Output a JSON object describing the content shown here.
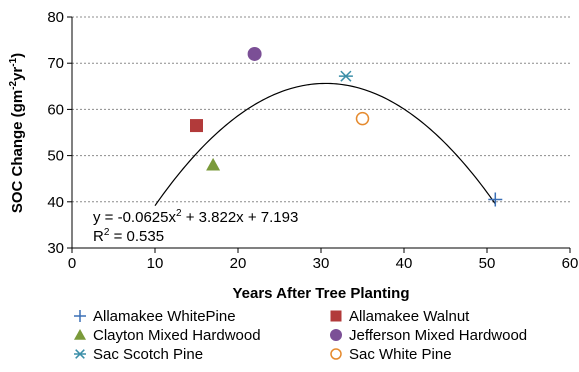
{
  "chart_data": {
    "type": "scatter",
    "xlabel": "Years After Tree Planting",
    "ylabel": "SOC Change (gm",
    "ylabel_sup1": "-2",
    "ylabel_mid": "yr",
    "ylabel_sup2": "-1",
    "ylabel_end": ")",
    "xlim": [
      0,
      60
    ],
    "ylim": [
      30,
      80
    ],
    "xticks": [
      0,
      10,
      20,
      30,
      40,
      50,
      60
    ],
    "yticks": [
      30,
      40,
      50,
      60,
      70,
      80
    ],
    "grid": "horizontal dotted",
    "legend_position": "bottom",
    "series": [
      {
        "name": "Allamakee WhitePine",
        "marker": "plus",
        "color": "#3a6fb6",
        "x": [
          51
        ],
        "y": [
          40.5
        ]
      },
      {
        "name": "Allamakee Walnut",
        "marker": "square",
        "color": "#b23a3a",
        "x": [
          15
        ],
        "y": [
          56.5
        ]
      },
      {
        "name": "Clayton Mixed Hardwood",
        "marker": "triangle",
        "color": "#7a9a3a",
        "x": [
          17
        ],
        "y": [
          48
        ]
      },
      {
        "name": "Jefferson Mixed Hardwood",
        "marker": "circle",
        "color": "#7b4f96",
        "x": [
          22
        ],
        "y": [
          72
        ]
      },
      {
        "name": "Sac Scotch Pine",
        "marker": "asterisk",
        "color": "#3b8fa8",
        "x": [
          33
        ],
        "y": [
          67.2
        ]
      },
      {
        "name": "Sac White Pine",
        "marker": "circle-open",
        "color": "#e58a2e",
        "x": [
          35
        ],
        "y": [
          58
        ]
      }
    ],
    "trendline": {
      "type": "polynomial",
      "coefficients": [
        -0.0625,
        3.822,
        7.193
      ],
      "x_range": [
        10,
        51
      ],
      "color": "#000000"
    },
    "equation": {
      "line1_a": "y = -0.0625x",
      "line1_sup": "2",
      "line1_b": " + 3.822x + 7.193",
      "line2_a": "R",
      "line2_sup": "2",
      "line2_b": " = 0.535"
    }
  }
}
